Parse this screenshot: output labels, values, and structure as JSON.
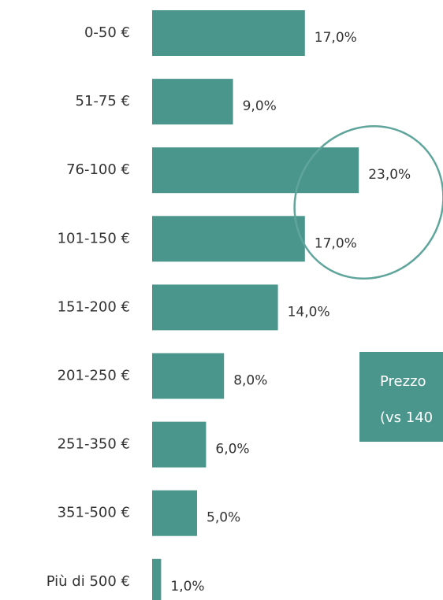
{
  "chart_data": {
    "type": "bar",
    "orientation": "horizontal",
    "categories": [
      "0-50 €",
      "51-75 €",
      "76-100 €",
      "101-150 €",
      "151-200 €",
      "201-250 €",
      "251-350 €",
      "351-500 €",
      "Più di 500 €"
    ],
    "values": [
      17,
      9,
      23,
      17,
      14,
      8,
      6,
      5,
      1
    ],
    "value_labels": [
      "17,0%",
      "9,0%",
      "23,0%",
      "17,0%",
      "14,0%",
      "8,0%",
      "6,0%",
      "5,0%",
      "1,0%"
    ],
    "color": "#4a968c",
    "annotations": [
      "Prezzo",
      "(vs 140"
    ]
  }
}
